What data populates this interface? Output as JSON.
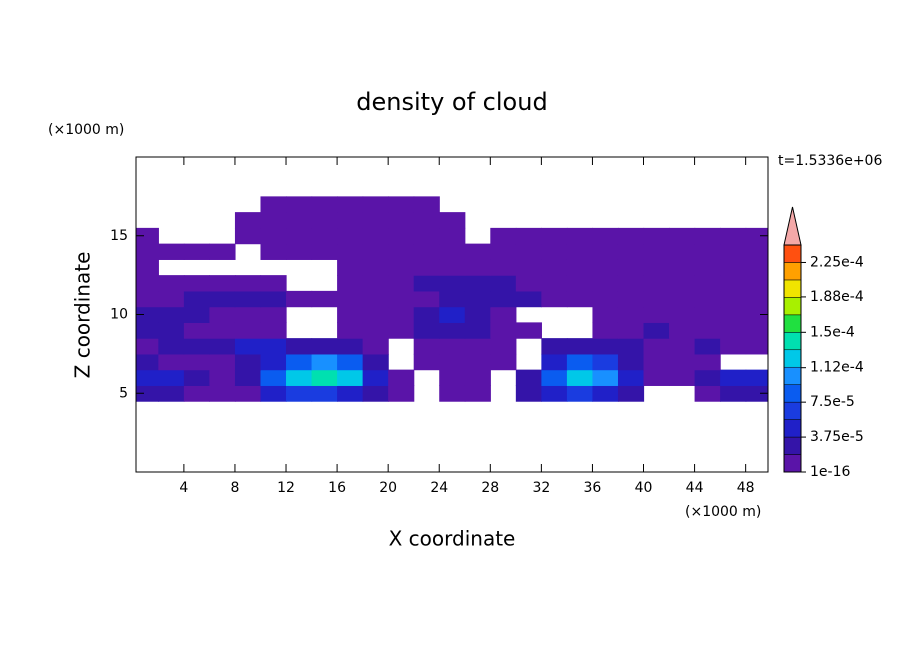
{
  "chart_data": {
    "type": "contour",
    "title": "density of cloud",
    "x_label": "X coordinate",
    "y_label": "Z coordinate",
    "x_unit": "(×1000 m)",
    "y_unit": "(×1000 m)",
    "annotation": "t=1.5336e+06",
    "xlim": [
      0.25,
      49.75
    ],
    "ylim": [
      0,
      20
    ],
    "xticks": [
      4,
      8,
      12,
      16,
      20,
      24,
      28,
      32,
      36,
      40,
      44,
      48
    ],
    "yticks": [
      5,
      10,
      15
    ],
    "x": [
      1,
      3,
      5,
      7,
      9,
      11,
      13,
      15,
      17,
      19,
      21,
      23,
      25,
      27,
      29,
      31,
      33,
      35,
      37,
      39,
      41,
      43,
      45,
      47,
      49
    ],
    "z": [
      5,
      6,
      7,
      8,
      9,
      10,
      11,
      12,
      13,
      14,
      15,
      16,
      17
    ],
    "values": [
      [
        2.5e-05,
        2.5e-05,
        5e-06,
        5e-06,
        5e-06,
        4.5e-05,
        6.5e-05,
        6.5e-05,
        4.5e-05,
        2.5e-05,
        5e-06,
        null,
        5e-06,
        5e-06,
        null,
        2.5e-05,
        4.5e-05,
        6.5e-05,
        4.5e-05,
        2.5e-05,
        null,
        null,
        5e-06,
        2.5e-05,
        2.5e-05
      ],
      [
        4.5e-05,
        4.5e-05,
        2.5e-05,
        5e-06,
        2.5e-05,
        8.5e-05,
        0.000125,
        0.00014,
        0.000125,
        4.5e-05,
        5e-06,
        null,
        5e-06,
        5e-06,
        null,
        2.5e-05,
        8.5e-05,
        0.000125,
        0.000105,
        4.5e-05,
        5e-06,
        5e-06,
        2.5e-05,
        4.5e-05,
        4.5e-05
      ],
      [
        2.5e-05,
        5e-06,
        5e-06,
        5e-06,
        2.5e-05,
        4.5e-05,
        8.5e-05,
        0.000105,
        8.5e-05,
        2.5e-05,
        null,
        5e-06,
        5e-06,
        5e-06,
        5e-06,
        null,
        4.5e-05,
        8.5e-05,
        6.5e-05,
        2.5e-05,
        5e-06,
        5e-06,
        5e-06,
        null,
        null
      ],
      [
        5e-06,
        2.5e-05,
        2.5e-05,
        2.5e-05,
        4.5e-05,
        4.5e-05,
        2.5e-05,
        2.5e-05,
        2.5e-05,
        5e-06,
        null,
        5e-06,
        5e-06,
        5e-06,
        5e-06,
        null,
        2.5e-05,
        2.5e-05,
        2.5e-05,
        2.5e-05,
        5e-06,
        5e-06,
        2.5e-05,
        5e-06,
        5e-06
      ],
      [
        2.5e-05,
        2.5e-05,
        5e-06,
        5e-06,
        5e-06,
        5e-06,
        null,
        null,
        5e-06,
        5e-06,
        5e-06,
        2.5e-05,
        2.5e-05,
        2.5e-05,
        5e-06,
        5e-06,
        null,
        null,
        5e-06,
        5e-06,
        2.5e-05,
        5e-06,
        5e-06,
        5e-06,
        5e-06
      ],
      [
        2.5e-05,
        2.5e-05,
        2.5e-05,
        5e-06,
        5e-06,
        5e-06,
        null,
        null,
        5e-06,
        5e-06,
        5e-06,
        2.5e-05,
        4.5e-05,
        2.5e-05,
        5e-06,
        null,
        null,
        null,
        5e-06,
        5e-06,
        5e-06,
        5e-06,
        5e-06,
        5e-06,
        5e-06
      ],
      [
        5e-06,
        5e-06,
        2.5e-05,
        2.5e-05,
        2.5e-05,
        2.5e-05,
        5e-06,
        5e-06,
        5e-06,
        5e-06,
        5e-06,
        5e-06,
        2.5e-05,
        2.5e-05,
        2.5e-05,
        2.5e-05,
        5e-06,
        5e-06,
        5e-06,
        5e-06,
        5e-06,
        5e-06,
        5e-06,
        5e-06,
        5e-06
      ],
      [
        5e-06,
        5e-06,
        5e-06,
        5e-06,
        5e-06,
        5e-06,
        null,
        null,
        5e-06,
        5e-06,
        5e-06,
        2.5e-05,
        2.5e-05,
        2.5e-05,
        2.5e-05,
        5e-06,
        5e-06,
        5e-06,
        5e-06,
        5e-06,
        5e-06,
        5e-06,
        5e-06,
        5e-06,
        5e-06
      ],
      [
        5e-06,
        null,
        null,
        null,
        null,
        null,
        null,
        null,
        5e-06,
        5e-06,
        5e-06,
        5e-06,
        5e-06,
        5e-06,
        5e-06,
        5e-06,
        5e-06,
        5e-06,
        5e-06,
        5e-06,
        5e-06,
        5e-06,
        5e-06,
        5e-06,
        5e-06
      ],
      [
        5e-06,
        5e-06,
        5e-06,
        5e-06,
        null,
        5e-06,
        5e-06,
        5e-06,
        5e-06,
        5e-06,
        5e-06,
        5e-06,
        5e-06,
        5e-06,
        5e-06,
        5e-06,
        5e-06,
        5e-06,
        5e-06,
        5e-06,
        5e-06,
        5e-06,
        5e-06,
        5e-06,
        5e-06
      ],
      [
        5e-06,
        null,
        null,
        null,
        5e-06,
        5e-06,
        5e-06,
        5e-06,
        5e-06,
        5e-06,
        5e-06,
        5e-06,
        5e-06,
        null,
        5e-06,
        5e-06,
        5e-06,
        5e-06,
        5e-06,
        5e-06,
        5e-06,
        5e-06,
        5e-06,
        5e-06,
        5e-06
      ],
      [
        null,
        null,
        null,
        null,
        5e-06,
        5e-06,
        5e-06,
        5e-06,
        5e-06,
        5e-06,
        5e-06,
        5e-06,
        5e-06,
        null,
        null,
        null,
        null,
        null,
        null,
        null,
        null,
        null,
        null,
        null,
        null
      ],
      [
        null,
        null,
        null,
        null,
        null,
        5e-06,
        5e-06,
        5e-06,
        5e-06,
        5e-06,
        5e-06,
        5e-06,
        null,
        null,
        null,
        null,
        null,
        null,
        null,
        null,
        null,
        null,
        null,
        null,
        null
      ]
    ],
    "colorbar": {
      "levels": [
        1e-16,
        1.875e-05,
        3.75e-05,
        5.625e-05,
        7.5e-05,
        9.375e-05,
        0.0001125,
        0.00013125,
        0.00015,
        0.00016875,
        0.0001875,
        0.00020625,
        0.000225,
        0.00024375
      ],
      "colors": [
        "#5a14a8",
        "#3414a8",
        "#2020c8",
        "#1a3ce0",
        "#0a5cf0",
        "#1890ff",
        "#00c8e8",
        "#00e0b0",
        "#20e040",
        "#a8f000",
        "#f0e400",
        "#ffa000",
        "#ff5010"
      ],
      "extend_color": "#f4a8a8",
      "ticks": [
        {
          "value": 1e-16,
          "label": "1e-16"
        },
        {
          "value": 3.75e-05,
          "label": "3.75e-5"
        },
        {
          "value": 7.5e-05,
          "label": "7.5e-5"
        },
        {
          "value": 0.000112,
          "label": "1.12e-4"
        },
        {
          "value": 0.00015,
          "label": "1.5e-4"
        },
        {
          "value": 0.000188,
          "label": "1.88e-4"
        },
        {
          "value": 0.000225,
          "label": "2.25e-4"
        }
      ]
    }
  }
}
